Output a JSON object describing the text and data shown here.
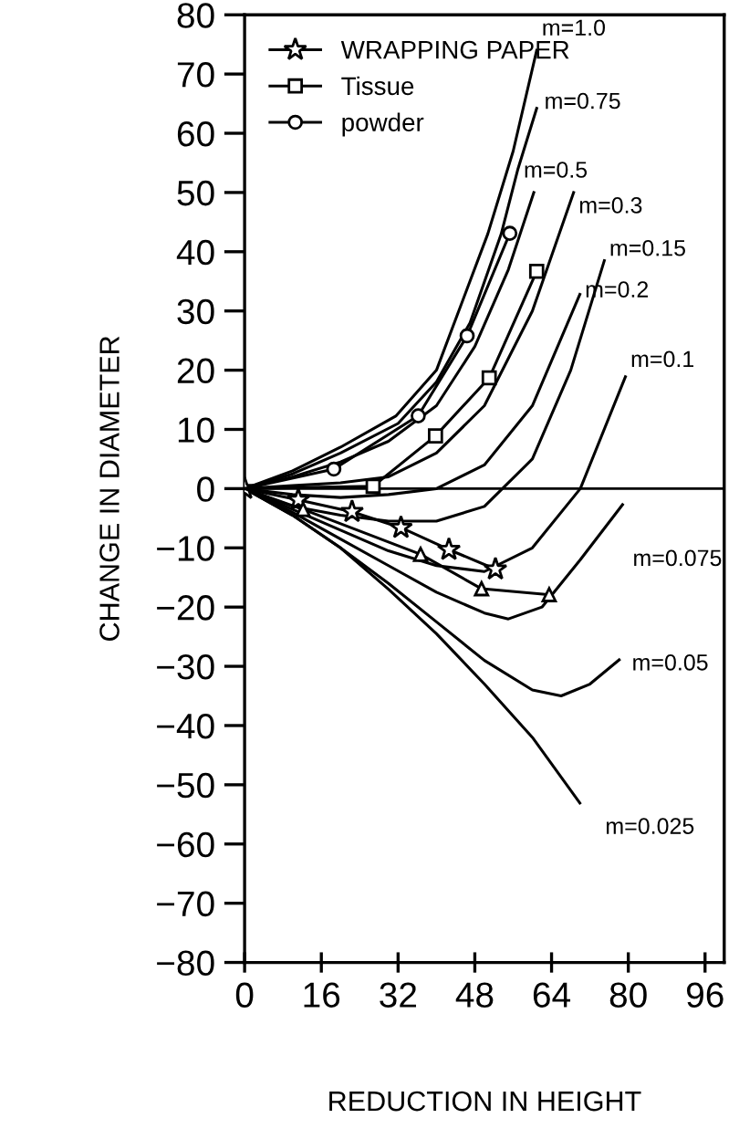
{
  "chart_data": {
    "type": "line",
    "xlabel": "REDUCTION IN HEIGHT",
    "ylabel": "CHANGE IN DIAMETER",
    "xlim": [
      0,
      100
    ],
    "xticks": [
      0,
      16,
      32,
      48,
      64,
      80,
      96
    ],
    "ylim": [
      -80,
      80
    ],
    "yticks": [
      -80,
      -70,
      -60,
      -50,
      -40,
      -30,
      -20,
      -10,
      0,
      10,
      20,
      30,
      40,
      50,
      60,
      70,
      80
    ],
    "grid": false,
    "legend": "top left",
    "line_style": "solid",
    "ref_lines": [
      {
        "axis": "y",
        "value": 0,
        "color": "#000000"
      }
    ],
    "series": [
      {
        "name": "WRAPPING PAPER",
        "color": "#000000",
        "marker": "star",
        "x": [
          0,
          11.2,
          22.4,
          32.6,
          42.6,
          52.3
        ],
        "values": [
          0,
          -1.9,
          -3.9,
          -6.6,
          -10.3,
          -13.6
        ]
      },
      {
        "name": "Tissue",
        "color": "#000000",
        "marker": "square",
        "x": [
          0,
          26.8,
          39.8,
          51,
          60.9
        ],
        "values": [
          0,
          0.4,
          8.9,
          18.7,
          36.7
        ]
      },
      {
        "name": "powder",
        "color": "#000000",
        "marker": "circle",
        "x": [
          0,
          18.6,
          36.2,
          46.4,
          55.3
        ],
        "values": [
          0,
          3.3,
          12.3,
          25.8,
          43.1
        ]
      },
      {
        "color": "#000000",
        "marker": "triangle",
        "x": [
          0,
          12.2,
          36.7,
          49.4,
          63.5
        ],
        "values": [
          0,
          -3.5,
          -11.1,
          -16.9,
          -17.9
        ]
      },
      {
        "name": "m=1.0",
        "color": "#000000",
        "marker": "none",
        "x": [
          0,
          10,
          20,
          31.6,
          40,
          50.7,
          56,
          60.9
        ],
        "values": [
          0,
          3,
          7,
          12.3,
          20,
          43,
          57,
          74
        ]
      },
      {
        "name": "m=0.75",
        "color": "#000000",
        "marker": "none",
        "x": [
          0,
          10,
          20,
          32,
          40,
          47,
          53.5,
          57,
          60.9
        ],
        "values": [
          0,
          2.5,
          6,
          11,
          18,
          28,
          43,
          54,
          64.2
        ]
      },
      {
        "name": "m=0.5",
        "color": "#000000",
        "marker": "none",
        "x": [
          0,
          10,
          20,
          30,
          40,
          48,
          55,
          60.3
        ],
        "values": [
          0,
          2,
          4.5,
          8,
          14,
          24,
          37,
          50
        ]
      },
      {
        "name": "m=0.3",
        "color": "#000000",
        "marker": "none",
        "x": [
          0,
          10,
          20,
          30,
          40,
          50,
          60,
          68.6
        ],
        "values": [
          0,
          0.5,
          1,
          2,
          6,
          14,
          30,
          50
        ]
      },
      {
        "name": "m=0.15",
        "color": "#000000",
        "marker": "none",
        "x": [
          0,
          10,
          20,
          30,
          40,
          50,
          60,
          68,
          75
        ],
        "values": [
          0,
          -3,
          -4.5,
          -5.5,
          -5.5,
          -3,
          5,
          20,
          38.5
        ]
      },
      {
        "name": "m=0.2",
        "color": "#000000",
        "marker": "none",
        "x": [
          0,
          10,
          20,
          30,
          40,
          50,
          60,
          69.9
        ],
        "values": [
          0,
          -1,
          -1.5,
          -1,
          0,
          4,
          14,
          32.8
        ]
      },
      {
        "name": "m=0.1",
        "color": "#000000",
        "marker": "none",
        "x": [
          0,
          10,
          20,
          30,
          40,
          50,
          60,
          70,
          79.4
        ],
        "values": [
          0,
          -3.5,
          -7,
          -10.5,
          -13,
          -14,
          -10,
          0,
          18.9
        ]
      },
      {
        "name": "m=0.075",
        "color": "#000000",
        "marker": "none",
        "x": [
          0,
          10,
          20,
          30,
          40,
          50,
          55,
          62,
          70,
          78.8
        ],
        "values": [
          0,
          -4,
          -8.5,
          -13,
          -17.5,
          -21,
          -22,
          -20,
          -12,
          -2.7
        ]
      },
      {
        "name": "m=0.05",
        "color": "#000000",
        "marker": "none",
        "x": [
          0,
          10,
          20,
          30,
          40,
          50,
          60,
          66,
          72,
          78.1
        ],
        "values": [
          0,
          -4.5,
          -10,
          -16,
          -22.5,
          -29,
          -34,
          -35,
          -33,
          -28.9
        ]
      },
      {
        "name": "m=0.025",
        "color": "#000000",
        "marker": "none",
        "x": [
          0,
          10,
          20,
          30,
          40,
          50,
          60,
          69.9
        ],
        "values": [
          0,
          -4.5,
          -10,
          -17,
          -24.5,
          -33,
          -42,
          -53.1
        ]
      }
    ]
  }
}
